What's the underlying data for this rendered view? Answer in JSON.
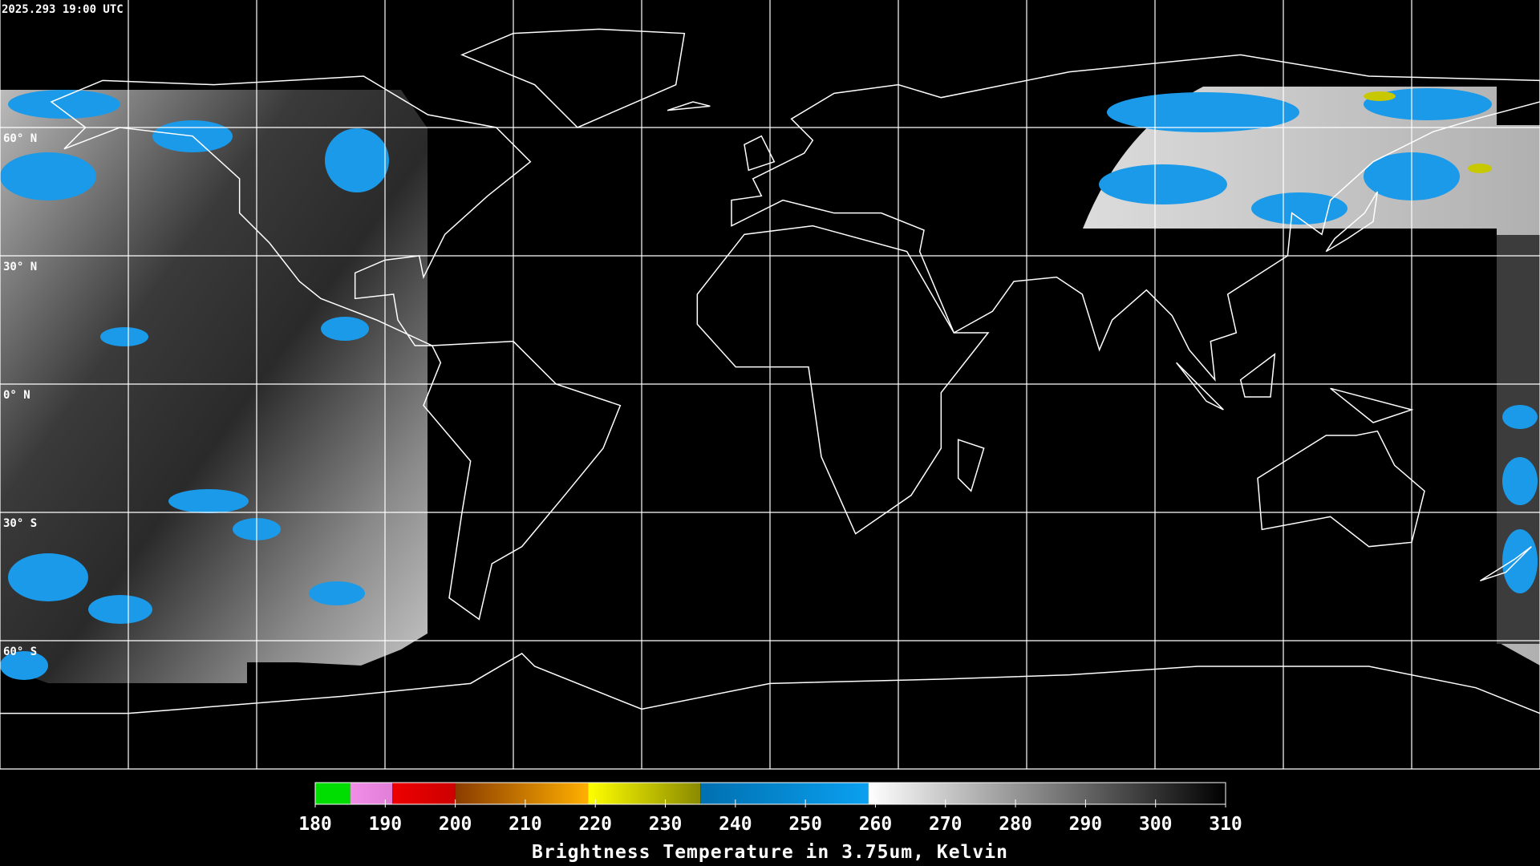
{
  "timestamp": "2025.293 19:00 UTC",
  "latitude_labels": [
    "60° N",
    "30° N",
    "0° N",
    "30° S",
    "60° S"
  ],
  "colorbar": {
    "title": "Brightness Temperature in 3.75um, Kelvin",
    "range": [
      180,
      310
    ],
    "ticks": [
      180,
      190,
      200,
      210,
      220,
      230,
      240,
      250,
      260,
      270,
      280,
      290,
      300,
      310
    ],
    "segments": [
      {
        "from": 180,
        "to": 185,
        "colors": [
          "#00dd00",
          "#00dd00"
        ]
      },
      {
        "from": 185,
        "to": 191,
        "colors": [
          "#f08ee8",
          "#e07ed8"
        ]
      },
      {
        "from": 191,
        "to": 200,
        "colors": [
          "#ee0000",
          "#cc0000"
        ]
      },
      {
        "from": 200,
        "to": 219,
        "colors": [
          "#8a3c00",
          "#ffb000"
        ]
      },
      {
        "from": 219,
        "to": 235,
        "colors": [
          "#ffff00",
          "#8a8a00"
        ]
      },
      {
        "from": 235,
        "to": 259,
        "colors": [
          "#0070b0",
          "#0aa0f0"
        ]
      },
      {
        "from": 259,
        "to": 310,
        "colors": [
          "#ffffff",
          "#000000"
        ]
      }
    ]
  }
}
